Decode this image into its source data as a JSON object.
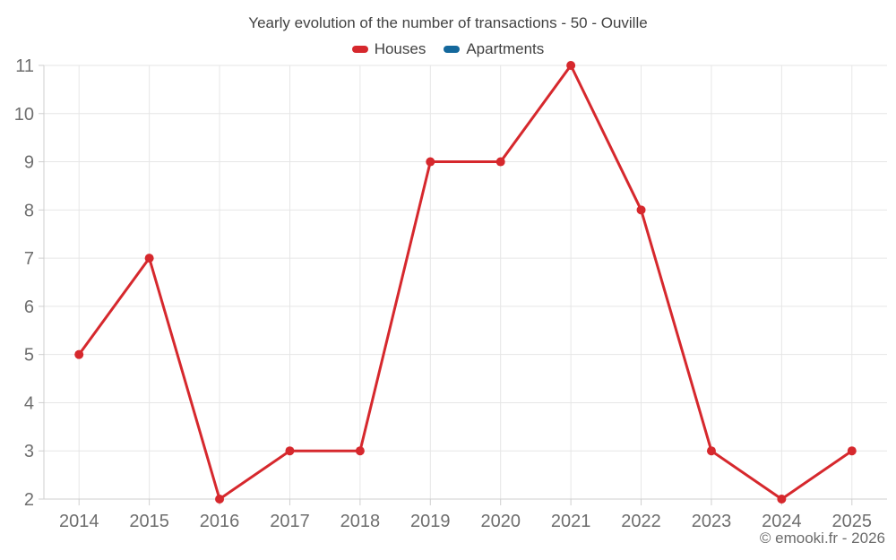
{
  "footer": "© emooki.fr - 2026",
  "chart_data": {
    "type": "line",
    "title": "Yearly evolution of the number of transactions - 50 - Ouville",
    "xlabel": "",
    "ylabel": "",
    "x": [
      "2014",
      "2015",
      "2016",
      "2017",
      "2018",
      "2019",
      "2020",
      "2021",
      "2022",
      "2023",
      "2024",
      "2025"
    ],
    "series": [
      {
        "name": "Houses",
        "color": "#d6282d",
        "values": [
          5,
          7,
          2,
          3,
          3,
          9,
          9,
          11,
          8,
          3,
          2,
          3
        ]
      },
      {
        "name": "Apartments",
        "color": "#14689c",
        "values": []
      }
    ],
    "ylim": [
      2,
      11
    ],
    "yticks": [
      2,
      3,
      4,
      5,
      6,
      7,
      8,
      9,
      10,
      11
    ],
    "grid": true,
    "grid_color": "#e6e6e6",
    "axis_color": "#cfcfcf",
    "label_color": "#6e6e6e",
    "title_color": "#424242",
    "legend_position": "top",
    "marker_radius": 5,
    "line_width": 3
  }
}
